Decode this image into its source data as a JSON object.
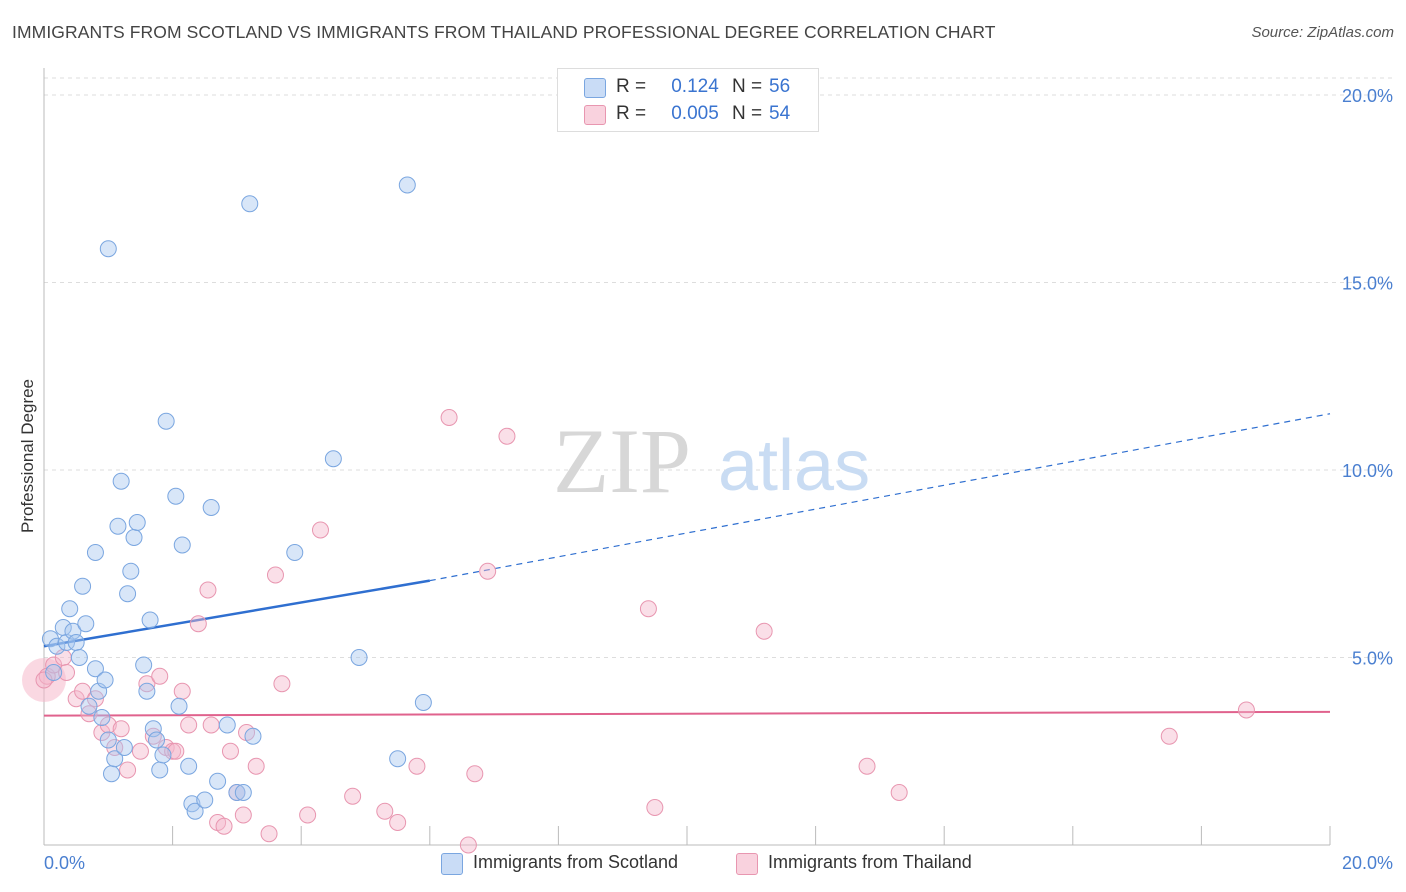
{
  "title": "IMMIGRANTS FROM SCOTLAND VS IMMIGRANTS FROM THAILAND PROFESSIONAL DEGREE CORRELATION CHART",
  "source": "Source: ZipAtlas.com",
  "watermark": {
    "part1": "ZIP",
    "part2": "atlas"
  },
  "colors": {
    "scotland_fill": "#a8c8f0",
    "scotland_stroke": "#7aa6e0",
    "scotland_line": "#2f6fd0",
    "thailand_fill": "#f5b8cb",
    "thailand_stroke": "#e896b0",
    "thailand_line": "#e0628d",
    "axis_text": "#4a7fd0",
    "grid": "#dddddd"
  },
  "legend": {
    "rows": [
      {
        "r_label": "R =",
        "r_value": "0.124",
        "n_label": "N =",
        "n_value": "56"
      },
      {
        "r_label": "R =",
        "r_value": "0.005",
        "n_label": "N =",
        "n_value": "54"
      }
    ]
  },
  "bottom_legend": {
    "scotland": "Immigrants from Scotland",
    "thailand": "Immigrants from Thailand"
  },
  "chart_data": {
    "type": "scatter",
    "title": "IMMIGRANTS FROM SCOTLAND VS IMMIGRANTS FROM THAILAND PROFESSIONAL DEGREE CORRELATION CHART",
    "xlabel": "",
    "ylabel": "Professional Degree",
    "xlim": [
      0,
      20
    ],
    "ylim": [
      0,
      20
    ],
    "x_tick_labels": [
      "0.0%",
      "20.0%"
    ],
    "y_ticks": [
      5,
      10,
      15,
      20
    ],
    "y_tick_labels": [
      "5.0%",
      "10.0%",
      "15.0%",
      "20.0%"
    ],
    "grid": true,
    "legend_position": "top-center",
    "series": [
      {
        "name": "Immigrants from Scotland",
        "r": 0.124,
        "n": 56,
        "trend": {
          "x0": 0.0,
          "y0": 5.3,
          "x1": 6.0,
          "y1": 7.05,
          "extend_to_x": 20.0,
          "extend_y": 11.5
        },
        "points": [
          [
            0.1,
            5.5
          ],
          [
            0.2,
            5.3
          ],
          [
            0.3,
            5.8
          ],
          [
            0.35,
            5.4
          ],
          [
            0.4,
            6.3
          ],
          [
            0.45,
            5.7
          ],
          [
            0.5,
            5.4
          ],
          [
            0.55,
            5.0
          ],
          [
            0.6,
            6.9
          ],
          [
            0.65,
            5.9
          ],
          [
            0.7,
            3.7
          ],
          [
            0.8,
            4.7
          ],
          [
            0.85,
            4.1
          ],
          [
            0.9,
            3.4
          ],
          [
            0.95,
            4.4
          ],
          [
            1.0,
            2.8
          ],
          [
            1.05,
            1.9
          ],
          [
            1.1,
            2.3
          ],
          [
            1.15,
            8.5
          ],
          [
            1.2,
            9.7
          ],
          [
            1.25,
            2.6
          ],
          [
            1.3,
            6.7
          ],
          [
            1.35,
            7.3
          ],
          [
            1.4,
            8.2
          ],
          [
            1.45,
            8.6
          ],
          [
            1.55,
            4.8
          ],
          [
            1.6,
            4.1
          ],
          [
            1.65,
            6.0
          ],
          [
            1.7,
            3.1
          ],
          [
            1.75,
            2.8
          ],
          [
            1.8,
            2.0
          ],
          [
            1.85,
            2.4
          ],
          [
            1.9,
            11.3
          ],
          [
            2.05,
            9.3
          ],
          [
            2.1,
            3.7
          ],
          [
            2.15,
            8.0
          ],
          [
            2.25,
            2.1
          ],
          [
            2.3,
            1.1
          ],
          [
            2.35,
            0.9
          ],
          [
            2.5,
            1.2
          ],
          [
            2.6,
            9.0
          ],
          [
            2.7,
            1.7
          ],
          [
            2.85,
            3.2
          ],
          [
            3.0,
            1.4
          ],
          [
            3.1,
            1.4
          ],
          [
            3.2,
            17.1
          ],
          [
            3.25,
            2.9
          ],
          [
            3.9,
            7.8
          ],
          [
            4.5,
            10.3
          ],
          [
            4.9,
            5.0
          ],
          [
            5.5,
            2.3
          ],
          [
            5.65,
            17.6
          ],
          [
            5.9,
            3.8
          ],
          [
            1.0,
            15.9
          ],
          [
            0.8,
            7.8
          ],
          [
            0.15,
            4.6
          ]
        ]
      },
      {
        "name": "Immigrants from Thailand",
        "r": 0.005,
        "n": 54,
        "trend": {
          "x0": 0.0,
          "y0": 3.45,
          "x1": 20.0,
          "y1": 3.55
        },
        "points": [
          [
            0.05,
            4.5
          ],
          [
            0.15,
            4.8
          ],
          [
            0.3,
            5.0
          ],
          [
            0.35,
            4.6
          ],
          [
            0.5,
            3.9
          ],
          [
            0.6,
            4.1
          ],
          [
            0.7,
            3.5
          ],
          [
            0.8,
            3.9
          ],
          [
            0.9,
            3.0
          ],
          [
            1.0,
            3.2
          ],
          [
            1.1,
            2.6
          ],
          [
            1.2,
            3.1
          ],
          [
            1.3,
            2.0
          ],
          [
            1.5,
            2.5
          ],
          [
            1.6,
            4.3
          ],
          [
            1.7,
            2.9
          ],
          [
            1.8,
            4.5
          ],
          [
            1.9,
            2.6
          ],
          [
            2.0,
            2.5
          ],
          [
            2.05,
            2.5
          ],
          [
            2.15,
            4.1
          ],
          [
            2.25,
            3.2
          ],
          [
            2.4,
            5.9
          ],
          [
            2.55,
            6.8
          ],
          [
            2.6,
            3.2
          ],
          [
            2.7,
            0.6
          ],
          [
            2.8,
            0.5
          ],
          [
            2.9,
            2.5
          ],
          [
            3.0,
            1.4
          ],
          [
            3.1,
            0.8
          ],
          [
            3.15,
            3.0
          ],
          [
            3.3,
            2.1
          ],
          [
            3.5,
            0.3
          ],
          [
            3.6,
            7.2
          ],
          [
            3.7,
            4.3
          ],
          [
            4.1,
            0.8
          ],
          [
            4.3,
            8.4
          ],
          [
            4.8,
            1.3
          ],
          [
            5.3,
            0.9
          ],
          [
            5.5,
            0.6
          ],
          [
            5.8,
            2.1
          ],
          [
            6.3,
            11.4
          ],
          [
            6.6,
            0.0
          ],
          [
            6.7,
            1.9
          ],
          [
            6.9,
            7.3
          ],
          [
            7.2,
            10.9
          ],
          [
            9.4,
            6.3
          ],
          [
            9.5,
            1.0
          ],
          [
            11.2,
            5.7
          ],
          [
            12.8,
            2.1
          ],
          [
            13.3,
            1.4
          ],
          [
            17.5,
            2.9
          ],
          [
            18.7,
            3.6
          ],
          [
            0.0,
            4.4
          ]
        ]
      }
    ]
  }
}
